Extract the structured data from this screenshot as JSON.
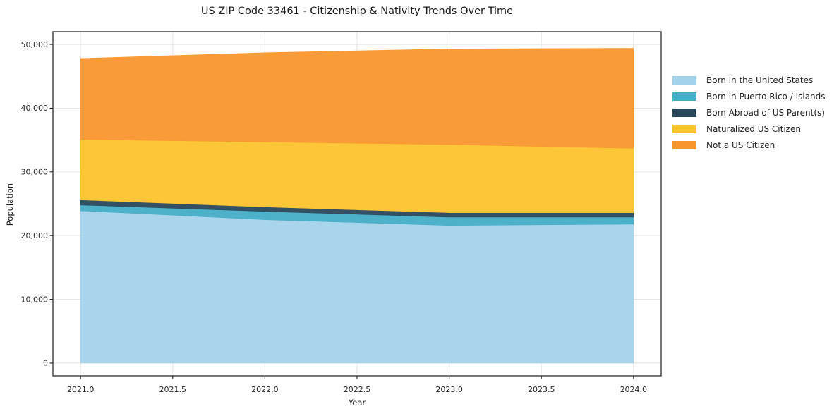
{
  "chart_data": {
    "type": "area",
    "stacked": true,
    "title": "US ZIP Code 33461 - Citizenship & Nativity Trends Over Time",
    "xlabel": "Year",
    "ylabel": "Population",
    "x": [
      2021,
      2022,
      2023,
      2024
    ],
    "series": [
      {
        "name": "Born in the United States",
        "color": "#a3d3ea",
        "values": [
          23900,
          22500,
          21600,
          21800
        ]
      },
      {
        "name": "Born in Puerto Rico / Islands",
        "color": "#44adc7",
        "values": [
          900,
          1300,
          1300,
          1100
        ]
      },
      {
        "name": "Born Abroad of US Parent(s)",
        "color": "#28485a",
        "values": [
          800,
          700,
          700,
          700
        ]
      },
      {
        "name": "Naturalized US Citizen",
        "color": "#fdc32d",
        "values": [
          9500,
          10200,
          10700,
          10100
        ]
      },
      {
        "name": "Not a US Citizen",
        "color": "#f8962d",
        "values": [
          12700,
          14000,
          15000,
          15700
        ]
      }
    ],
    "x_ticks": [
      {
        "v": 2021.0,
        "label": "2021.0"
      },
      {
        "v": 2021.5,
        "label": "2021.5"
      },
      {
        "v": 2022.0,
        "label": "2022.0"
      },
      {
        "v": 2022.5,
        "label": "2022.5"
      },
      {
        "v": 2023.0,
        "label": "2023.0"
      },
      {
        "v": 2023.5,
        "label": "2023.5"
      },
      {
        "v": 2024.0,
        "label": "2024.0"
      }
    ],
    "y_ticks": [
      {
        "v": 0,
        "label": "0"
      },
      {
        "v": 10000,
        "label": "10,000"
      },
      {
        "v": 20000,
        "label": "20,000"
      },
      {
        "v": 30000,
        "label": "30,000"
      },
      {
        "v": 40000,
        "label": "40,000"
      },
      {
        "v": 50000,
        "label": "50,000"
      }
    ],
    "xlim": [
      2020.85,
      2024.15
    ],
    "ylim": [
      -2000,
      52000
    ],
    "grid": true,
    "legend_position": "outside-right",
    "colors": {
      "background": "#ffffff",
      "spine": "#2e2e2e",
      "grid": "#e4e4e4",
      "tick": "#2e2e2e",
      "tick_label": "#262626"
    }
  }
}
